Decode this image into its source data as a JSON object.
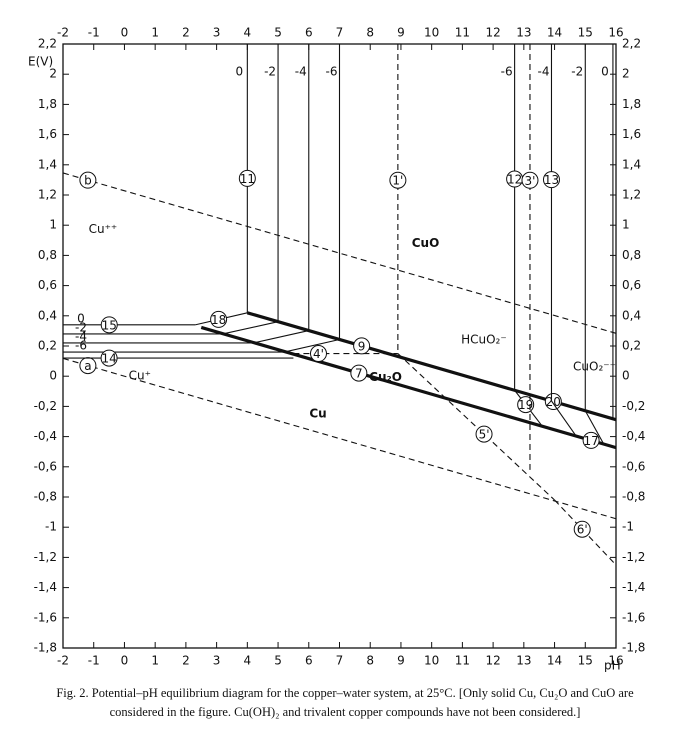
{
  "chart_data": {
    "type": "line",
    "y_axis_label": "E(V)",
    "x_axis_label": "pH",
    "xlim": [
      -2,
      16
    ],
    "ylim": [
      -1.8,
      2.2
    ],
    "xticks": [
      -2,
      -1,
      0,
      1,
      2,
      3,
      4,
      5,
      6,
      7,
      8,
      9,
      10,
      11,
      12,
      13,
      14,
      15,
      16
    ],
    "yticks": [
      {
        "value": -1.8,
        "label": "-1,8"
      },
      {
        "value": -1.6,
        "label": "-1,6"
      },
      {
        "value": -1.4,
        "label": "-1,4"
      },
      {
        "value": -1.2,
        "label": "-1,2"
      },
      -1,
      {
        "value": -0.8,
        "label": "-0,8"
      },
      {
        "value": -0.6,
        "label": "-0,6"
      },
      {
        "value": -0.4,
        "label": "-0,4"
      },
      {
        "value": -0.2,
        "label": "-0,2"
      },
      0,
      {
        "value": 0.2,
        "label": "0,2"
      },
      {
        "value": 0.4,
        "label": "0,4"
      },
      {
        "value": 0.6,
        "label": "0,6"
      },
      {
        "value": 0.8,
        "label": "0,8"
      },
      1,
      {
        "value": 1.2,
        "label": "1,2"
      },
      {
        "value": 1.4,
        "label": "1,4"
      },
      {
        "value": 1.6,
        "label": "1,6"
      },
      {
        "value": 1.8,
        "label": "1,8"
      },
      2,
      {
        "value": 2.2,
        "label": "2,2"
      }
    ],
    "color": "#111111",
    "series": [
      {
        "style": "dashed",
        "labels": [
          "b"
        ],
        "x": [
          -2,
          16
        ],
        "y": [
          1.346,
          0.284
        ]
      },
      {
        "style": "dashed",
        "labels": [
          "a"
        ],
        "x": [
          -2,
          16
        ],
        "y": [
          0.118,
          -0.944
        ]
      },
      {
        "style": "thick",
        "labels": [
          "9",
          "20"
        ],
        "x": [
          4,
          16
        ],
        "y": [
          0.42,
          -0.288
        ]
      },
      {
        "style": "thick",
        "labels": [
          "7",
          "17"
        ],
        "x": [
          2.5,
          16
        ],
        "y": [
          0.323,
          -0.473
        ]
      },
      {
        "style": "thin",
        "labels": [
          "18"
        ],
        "x": [
          2.3,
          4
        ],
        "y": [
          0.34,
          0.42
        ]
      },
      {
        "style": "thin",
        "labels": [
          "15"
        ],
        "end_label": "0",
        "x": [
          -2,
          2.3
        ],
        "y": [
          0.34,
          0.34
        ]
      },
      {
        "style": "thin",
        "end_label": "-2",
        "x": [
          -2,
          3.2,
          5
        ],
        "y": [
          0.28,
          0.28,
          0.361
        ]
      },
      {
        "style": "thin",
        "end_label": "-4",
        "x": [
          -2,
          4.2,
          6
        ],
        "y": [
          0.22,
          0.22,
          0.302
        ]
      },
      {
        "style": "thin",
        "end_label": "-6",
        "x": [
          -2,
          5.2,
          7
        ],
        "y": [
          0.16,
          0.16,
          0.243
        ]
      },
      {
        "style": "thin",
        "labels": [
          "14"
        ],
        "x": [
          -2,
          5.5
        ],
        "y": [
          0.12,
          0.12
        ]
      },
      {
        "style": "thin",
        "labels": [
          "11"
        ],
        "end_label": "0",
        "x": [
          4,
          4
        ],
        "y": [
          2.2,
          0.42
        ]
      },
      {
        "style": "thin",
        "end_label": "-2",
        "x": [
          5,
          5
        ],
        "y": [
          2.2,
          0.361
        ]
      },
      {
        "style": "thin",
        "end_label": "-4",
        "x": [
          6,
          6
        ],
        "y": [
          2.2,
          0.302
        ]
      },
      {
        "style": "thin",
        "end_label": "-6",
        "x": [
          7,
          7
        ],
        "y": [
          2.2,
          0.243
        ]
      },
      {
        "style": "thin",
        "labels": [
          "12"
        ],
        "end_label": "-6",
        "x": [
          12.7,
          12.7
        ],
        "y": [
          2.2,
          -0.093
        ]
      },
      {
        "style": "thin",
        "labels": [
          "13"
        ],
        "end_label": "-4",
        "x": [
          13.9,
          13.9
        ],
        "y": [
          2.2,
          -0.164
        ]
      },
      {
        "style": "thin",
        "end_label": "-2",
        "x": [
          15,
          15
        ],
        "y": [
          2.2,
          -0.229
        ]
      },
      {
        "style": "thin",
        "end_label": "0",
        "x": [
          15.9,
          15.9
        ],
        "y": [
          2.2,
          -0.282
        ]
      },
      {
        "style": "thin",
        "labels": [
          "19"
        ],
        "x": [
          12.7,
          13.6
        ],
        "y": [
          -0.093,
          -0.331
        ]
      },
      {
        "style": "thin",
        "x": [
          13.9,
          14.7
        ],
        "y": [
          -0.164,
          -0.396
        ]
      },
      {
        "style": "thin",
        "x": [
          15,
          15.6
        ],
        "y": [
          -0.229,
          -0.449
        ]
      },
      {
        "style": "dashed",
        "labels": [
          "1'"
        ],
        "x": [
          8.9,
          8.9
        ],
        "y": [
          2.2,
          0.15
        ]
      },
      {
        "style": "dashed",
        "labels": [
          "3'"
        ],
        "x": [
          13.2,
          13.2
        ],
        "y": [
          2.2,
          -0.62
        ]
      },
      {
        "style": "dashed",
        "labels": [
          "4'"
        ],
        "x": [
          5.5,
          8.9
        ],
        "y": [
          0.15,
          0.15
        ]
      },
      {
        "style": "dashed",
        "labels": [
          "5'"
        ],
        "x": [
          8.9,
          14
        ],
        "y": [
          0.15,
          -0.82
        ]
      },
      {
        "style": "dashed",
        "labels": [
          "6'"
        ],
        "x": [
          14,
          16
        ],
        "y": [
          -0.82,
          -1.25
        ]
      }
    ],
    "regions": [
      "Cu⁺⁺",
      "CuO",
      "HCuO₂⁻",
      "CuO₂⁻⁻",
      "Cu⁺",
      "Cu₂O",
      "Cu"
    ],
    "caption": [
      "Fig. 2. Potential–pH equilibrium diagram for the copper–water system, at 25°C. [Only solid Cu, Cu₂O and CuO are",
      "considered in the figure. Cu(OH)₂ and trivalent copper compounds have not been considered.]"
    ]
  }
}
